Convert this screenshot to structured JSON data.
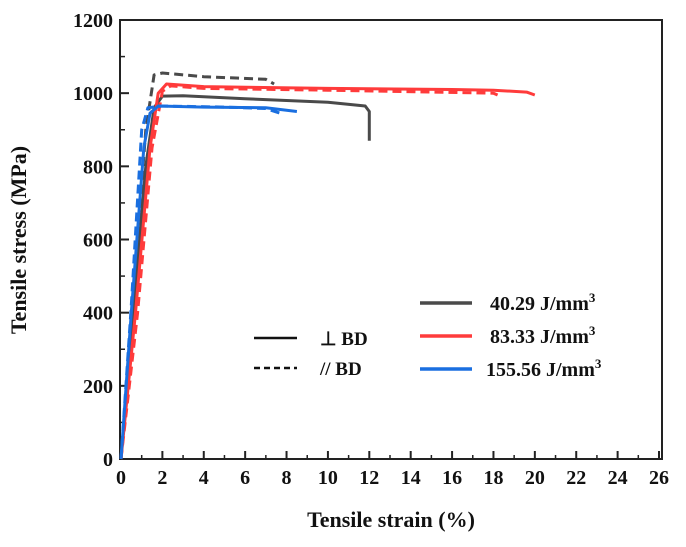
{
  "chart_data": {
    "type": "line",
    "title": "",
    "xlabel": "Tensile strain (%)",
    "ylabel": "Tensile stress (MPa)",
    "xlim": [
      0,
      26
    ],
    "ylim": [
      0,
      1200
    ],
    "xticks": [
      0,
      2,
      4,
      6,
      8,
      10,
      12,
      14,
      16,
      18,
      20,
      22,
      24,
      26
    ],
    "yticks": [
      0,
      200,
      400,
      600,
      800,
      1000,
      1200
    ],
    "grid": false,
    "legend_placement": "center-right",
    "style_legend": [
      {
        "label": "⊥ BD",
        "dash": "solid"
      },
      {
        "label": "// BD",
        "dash": "dashed"
      }
    ],
    "color_legend": [
      {
        "label": "40.29 J/mm",
        "sup": "3",
        "color": "#4a4a4a"
      },
      {
        "label": "83.33 J/mm",
        "sup": "3",
        "color": "#ff3b3b"
      },
      {
        "label": "155.56 J/mm",
        "sup": "3",
        "color": "#1a6fe0"
      }
    ],
    "series": [
      {
        "color": "#4a4a4a",
        "dash": "solid",
        "x": [
          0,
          0.6,
          1.2,
          1.6,
          2,
          3,
          6,
          10,
          11.8,
          12,
          12
        ],
        "y": [
          0,
          400,
          800,
          960,
          992,
          993,
          985,
          975,
          965,
          950,
          870
        ]
      },
      {
        "color": "#4a4a4a",
        "dash": "dashed",
        "x": [
          0,
          1.2,
          1.6,
          2,
          4,
          7,
          7.4
        ],
        "y": [
          0,
          900,
          1050,
          1055,
          1045,
          1038,
          1025
        ]
      },
      {
        "color": "#ff3b3b",
        "dash": "solid",
        "x": [
          0,
          0.7,
          1.4,
          1.8,
          2.2,
          4,
          10,
          16,
          18,
          19.6,
          20
        ],
        "y": [
          0,
          400,
          850,
          1000,
          1025,
          1018,
          1013,
          1010,
          1008,
          1003,
          995
        ]
      },
      {
        "color": "#ff3b3b",
        "dash": "dashed",
        "x": [
          0,
          0.8,
          1.5,
          2,
          2.4,
          4,
          10,
          18,
          18.2
        ],
        "y": [
          0,
          400,
          850,
          1005,
          1020,
          1013,
          1008,
          1000,
          995
        ]
      },
      {
        "color": "#1a6fe0",
        "dash": "solid",
        "x": [
          0,
          0.5,
          1.1,
          1.4,
          1.8,
          4,
          7,
          8.5
        ],
        "y": [
          0,
          400,
          850,
          945,
          965,
          962,
          960,
          950
        ]
      },
      {
        "color": "#1a6fe0",
        "dash": "dashed",
        "x": [
          0,
          0.5,
          1,
          1.3,
          2,
          5,
          7,
          7.7
        ],
        "y": [
          0,
          420,
          900,
          960,
          965,
          962,
          958,
          945
        ]
      }
    ]
  }
}
